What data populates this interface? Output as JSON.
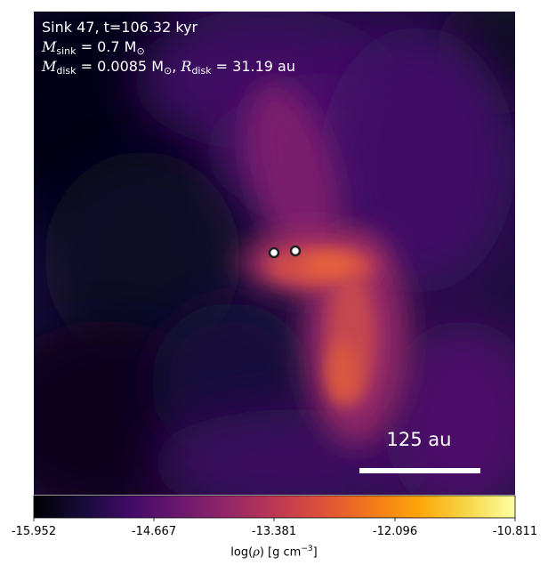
{
  "annotation": {
    "sink_line": "Sink 47, t=106.32 kyr",
    "msink_symbol": "M",
    "msink_sub": "sink",
    "msink_value": "= 0.7 M",
    "msun_sub": "⊙",
    "mdisk_symbol": "M",
    "mdisk_sub": "disk",
    "mdisk_value": "= 0.0085 M",
    "rdisk_symbol": "R",
    "rdisk_sub": "disk",
    "rdisk_value": "= 31.19 au"
  },
  "scalebar": {
    "label": "125 au"
  },
  "colorbar": {
    "colormap": "inferno",
    "ticks": [
      "-15.952",
      "-14.667",
      "-13.381",
      "-12.096",
      "-10.811"
    ],
    "label_prefix": "log(",
    "label_rho": "ρ",
    "label_suffix": ") [g cm",
    "label_exp": "−3",
    "label_close": "]"
  },
  "sinks": [
    {
      "name": "sink-a"
    },
    {
      "name": "sink-b"
    }
  ]
}
